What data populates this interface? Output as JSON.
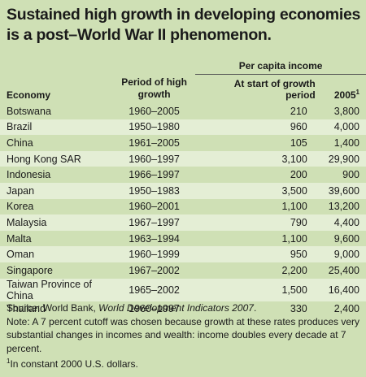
{
  "title": "Sustained high growth in developing economies is a post–World War II phenomenon.",
  "table": {
    "headers": {
      "economy": "Economy",
      "period": "Period of high growth",
      "income": "Per capita income",
      "start": "At start of growth period",
      "year": "2005",
      "year_note": "1"
    },
    "rows": [
      [
        "Botswana",
        "1960–2005",
        "210",
        "3,800"
      ],
      [
        "Brazil",
        "1950–1980",
        "960",
        "4,000"
      ],
      [
        "China",
        "1961–2005",
        "105",
        "1,400"
      ],
      [
        "Hong Kong SAR",
        "1960–1997",
        "3,100",
        "29,900"
      ],
      [
        "Indonesia",
        "1966–1997",
        "200",
        "900"
      ],
      [
        "Japan",
        "1950–1983",
        "3,500",
        "39,600"
      ],
      [
        "Korea",
        "1960–2001",
        "1,100",
        "13,200"
      ],
      [
        "Malaysia",
        "1967–1997",
        "790",
        "4,400"
      ],
      [
        "Malta",
        "1963–1994",
        "1,100",
        "9,600"
      ],
      [
        "Oman",
        "1960–1999",
        "950",
        "9,000"
      ],
      [
        "Singapore",
        "1967–2002",
        "2,200",
        "25,400"
      ],
      [
        "Taiwan Province of China",
        "1965–2002",
        "1,500",
        "16,400"
      ],
      [
        "Thailand",
        "1960–1997",
        "330",
        "2,400"
      ]
    ]
  },
  "notes": {
    "source_prefix": "Source: World Bank,",
    "source_title": "World Development Indicators 2007",
    "source_end": ".",
    "note": "Note: A 7 percent cutoff was chosen because growth at these rates produces very substantial changes in incomes and wealth: income doubles every decade at 7 percent.",
    "footnote_mark": "1",
    "footnote": "In constant 2000 U.S. dollars."
  }
}
